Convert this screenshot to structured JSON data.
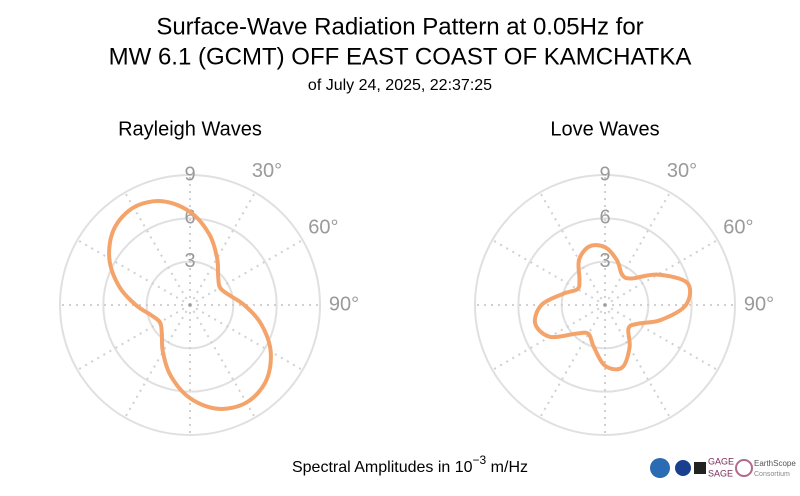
{
  "header": {
    "title": [
      "Surface-Wave Radiation Pattern at 0.05Hz for",
      "MW 6.1 (GCMT) OFF EAST COAST OF KAMCHATKA"
    ],
    "subtitle": "of July 24, 2025, 22:37:25"
  },
  "chart_data": [
    {
      "type": "polar",
      "title": "Rayleigh Waves",
      "color": "#f4a36a",
      "theta": [
        0,
        15,
        30,
        45,
        60,
        75,
        90,
        105,
        120,
        135,
        150,
        165,
        180,
        195,
        210,
        225,
        240,
        255,
        270,
        285,
        300,
        315,
        330,
        345
      ],
      "values": [
        6.45,
        5.1,
        3.75,
        2.76,
        2.4,
        2.76,
        3.75,
        5.1,
        6.45,
        7.44,
        7.8,
        7.44,
        6.45,
        5.1,
        3.75,
        2.76,
        2.4,
        2.76,
        3.75,
        5.1,
        6.45,
        7.44,
        7.8,
        7.44
      ],
      "rlim": [
        0,
        9
      ],
      "rticks": [
        3,
        6,
        9
      ],
      "thetaticks": [
        {
          "value": 30,
          "label": "30°"
        },
        {
          "value": 60,
          "label": "60°"
        },
        {
          "value": 90,
          "label": "90°"
        }
      ],
      "thetagrid": [
        0,
        30,
        60,
        90,
        120,
        150,
        180,
        210,
        240,
        270,
        300,
        330
      ]
    },
    {
      "type": "polar",
      "title": "Love Waves",
      "color": "#f4a36a",
      "theta": [
        0,
        15,
        30,
        45,
        60,
        75,
        90,
        105,
        120,
        135,
        150,
        165,
        180,
        195,
        210,
        225,
        240,
        255,
        270,
        285,
        300,
        315,
        330,
        345
      ],
      "values": [
        4.0,
        3.2,
        2.4,
        2.6,
        4.2,
        5.9,
        5.6,
        4.0,
        2.6,
        2.3,
        3.4,
        4.5,
        4.2,
        3.0,
        2.3,
        2.8,
        4.4,
        5.0,
        4.4,
        3.0,
        2.2,
        2.5,
        3.6,
        4.2
      ],
      "rlim": [
        0,
        9
      ],
      "rticks": [
        3,
        6,
        9
      ],
      "thetaticks": [
        {
          "value": 30,
          "label": "30°"
        },
        {
          "value": 60,
          "label": "60°"
        },
        {
          "value": 90,
          "label": "90°"
        }
      ],
      "thetagrid": [
        0,
        30,
        60,
        90,
        120,
        150,
        180,
        210,
        240,
        270,
        300,
        330
      ]
    }
  ],
  "footer": {
    "axis_label": [
      "Spectral Amplitudes in 10",
      "−3",
      " m/Hz"
    ],
    "logos": [
      "GAGE",
      "SAGE",
      "EarthScope",
      "Consortium"
    ]
  }
}
